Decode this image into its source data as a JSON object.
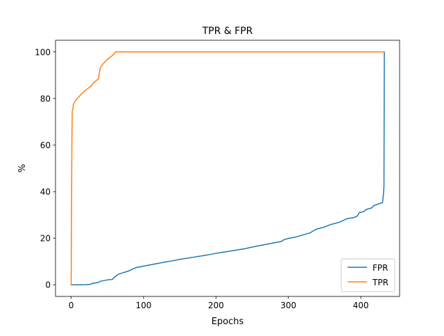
{
  "chart_data": {
    "type": "line",
    "title": "TPR & FPR",
    "xlabel": "Epochs",
    "ylabel": "%",
    "xlim": [
      -21.6,
      453.6
    ],
    "ylim": [
      -5,
      105
    ],
    "xticks": [
      0,
      100,
      200,
      300,
      400
    ],
    "yticks": [
      0,
      20,
      40,
      60,
      80,
      100
    ],
    "grid": false,
    "legend_position": "lower right",
    "series": [
      {
        "name": "FPR",
        "color": "#1f77b4",
        "points": [
          [
            0,
            0
          ],
          [
            5,
            0
          ],
          [
            10,
            0
          ],
          [
            20,
            0.05
          ],
          [
            27,
            0.2
          ],
          [
            28,
            0.5
          ],
          [
            35,
            0.9
          ],
          [
            38,
            1.0
          ],
          [
            40,
            1.5
          ],
          [
            45,
            1.8
          ],
          [
            50,
            2.1
          ],
          [
            57,
            2.3
          ],
          [
            59,
            3.0
          ],
          [
            63,
            4.0
          ],
          [
            65,
            4.5
          ],
          [
            70,
            5.0
          ],
          [
            80,
            6.0
          ],
          [
            85,
            6.8
          ],
          [
            90,
            7.4
          ],
          [
            100,
            8.0
          ],
          [
            110,
            8.6
          ],
          [
            120,
            9.2
          ],
          [
            130,
            9.8
          ],
          [
            140,
            10.3
          ],
          [
            150,
            10.9
          ],
          [
            160,
            11.4
          ],
          [
            170,
            11.9
          ],
          [
            180,
            12.4
          ],
          [
            190,
            12.9
          ],
          [
            200,
            13.5
          ],
          [
            210,
            14.0
          ],
          [
            220,
            14.5
          ],
          [
            230,
            15.0
          ],
          [
            240,
            15.5
          ],
          [
            250,
            16.2
          ],
          [
            260,
            16.8
          ],
          [
            270,
            17.4
          ],
          [
            280,
            18.0
          ],
          [
            290,
            18.6
          ],
          [
            295,
            19.5
          ],
          [
            300,
            19.9
          ],
          [
            310,
            20.5
          ],
          [
            320,
            21.4
          ],
          [
            330,
            22.3
          ],
          [
            335,
            23.3
          ],
          [
            340,
            24.0
          ],
          [
            350,
            24.8
          ],
          [
            355,
            25.5
          ],
          [
            360,
            26.0
          ],
          [
            370,
            26.8
          ],
          [
            375,
            27.5
          ],
          [
            380,
            28.3
          ],
          [
            385,
            28.6
          ],
          [
            390,
            28.8
          ],
          [
            395,
            29.5
          ],
          [
            398,
            31.0
          ],
          [
            405,
            31.5
          ],
          [
            407,
            32.3
          ],
          [
            415,
            33.0
          ],
          [
            418,
            34.0
          ],
          [
            425,
            34.8
          ],
          [
            430,
            35.3
          ],
          [
            431,
            38.0
          ],
          [
            432,
            42.0
          ],
          [
            432.5,
            100
          ]
        ]
      },
      {
        "name": "TPR",
        "color": "#ff7f0e",
        "points": [
          [
            0,
            0
          ],
          [
            0.5,
            30
          ],
          [
            1,
            60
          ],
          [
            1.5,
            74.5
          ],
          [
            2.5,
            75.5
          ],
          [
            3,
            77.5
          ],
          [
            5,
            78.5
          ],
          [
            7,
            79.5
          ],
          [
            10,
            80.5
          ],
          [
            13,
            81.5
          ],
          [
            16,
            82.5
          ],
          [
            19,
            83.3
          ],
          [
            22,
            84.0
          ],
          [
            25,
            84.8
          ],
          [
            28,
            85.5
          ],
          [
            30,
            86.5
          ],
          [
            33,
            87.3
          ],
          [
            36,
            88.0
          ],
          [
            38,
            88.5
          ],
          [
            39,
            91.0
          ],
          [
            40,
            93.0
          ],
          [
            42,
            94.0
          ],
          [
            44,
            94.8
          ],
          [
            46,
            95.5
          ],
          [
            48,
            96.2
          ],
          [
            50,
            96.8
          ],
          [
            53,
            97.5
          ],
          [
            56,
            98.2
          ],
          [
            59,
            99.0
          ],
          [
            61,
            100
          ],
          [
            100,
            100
          ],
          [
            200,
            100
          ],
          [
            300,
            100
          ],
          [
            400,
            100
          ],
          [
            432.5,
            100
          ]
        ]
      }
    ]
  }
}
